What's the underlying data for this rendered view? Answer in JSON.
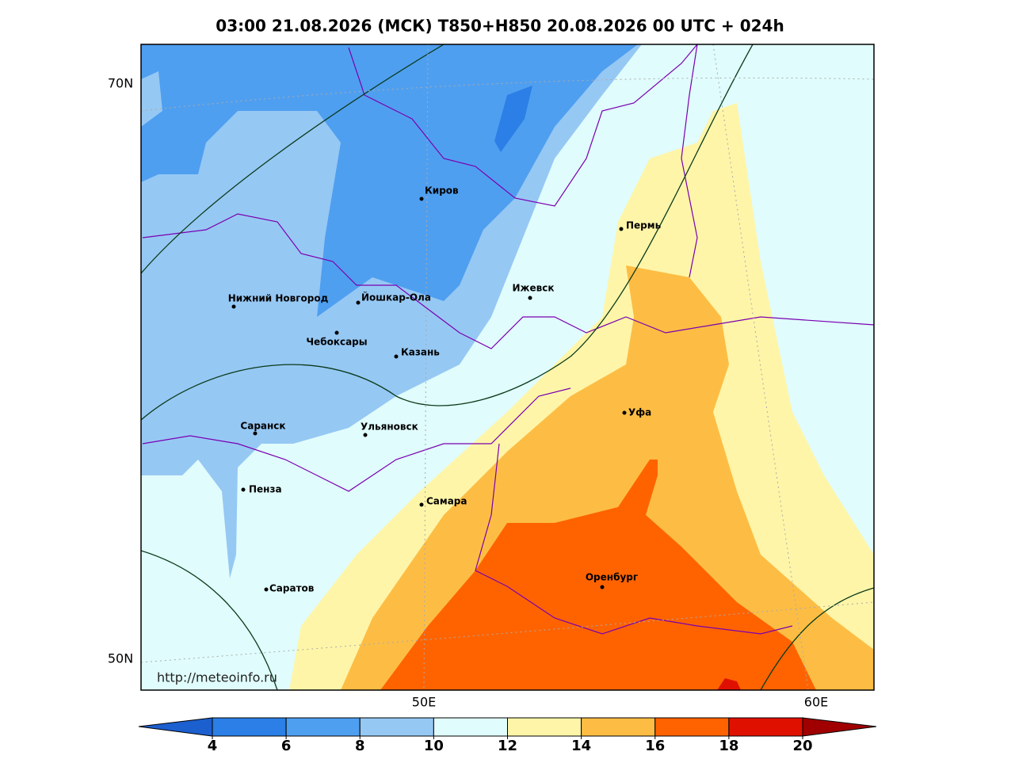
{
  "header": {
    "title": "03:00 21.08.2026 (МСК) T850+H850 20.08.2026 00 UTC + 024h"
  },
  "axes": {
    "latitude_labels": [
      "70N",
      "50N"
    ],
    "longitude_labels": [
      "50E",
      "60E"
    ]
  },
  "cities": [
    "Киров",
    "Пермь",
    "Нижний Новгород",
    "Йошкар-Ола",
    "Ижевск",
    "Чебоксары",
    "Казань",
    "Уфа",
    "Саранск",
    "Ульяновск",
    "Пенза",
    "Самара",
    "Оренбург",
    "Саратов"
  ],
  "watermark": "http://meteoinfo.ru",
  "colorbar": {
    "ticks": [
      4,
      6,
      8,
      10,
      12,
      14,
      16,
      18,
      20
    ],
    "colors": [
      "#1c5fcf",
      "#2b7fe6",
      "#4f9ff0",
      "#96c8f4",
      "#e0fcfc",
      "#fff5a8",
      "#fdbd44",
      "#ff6300",
      "#e01000",
      "#a00000"
    ]
  }
}
